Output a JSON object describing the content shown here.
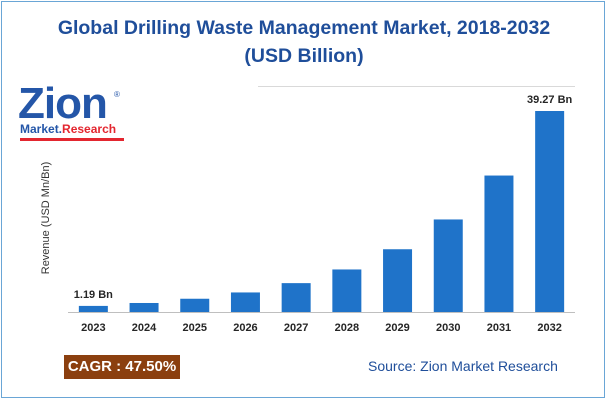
{
  "title_line1": "Global Drilling Waste Management Market, 2018-2032",
  "title_line2": "(USD Billion)",
  "logo": {
    "brand": "Zion",
    "sub_a": "Market.",
    "sub_b": "Research",
    "mark": "®"
  },
  "cagr": "CAGR : 47.50%",
  "source": "Source: Zion Market Research",
  "colors": {
    "bar": "#1f73c9",
    "title": "#1f4e9a",
    "cagr_bg": "#8b3f0f"
  },
  "chart_data": {
    "type": "bar",
    "categories": [
      "2023",
      "2024",
      "2025",
      "2026",
      "2027",
      "2028",
      "2029",
      "2030",
      "2031",
      "2032"
    ],
    "values": [
      1.19,
      1.76,
      2.59,
      3.82,
      5.64,
      8.31,
      12.26,
      18.08,
      26.66,
      39.27
    ],
    "data_labels": {
      "0": "1.19 Bn",
      "9": "39.27 Bn"
    },
    "ylabel": "Revenue (USD Mn/Bn)",
    "ylim": [
      0,
      39.27
    ],
    "grid": false,
    "legend": "none"
  }
}
